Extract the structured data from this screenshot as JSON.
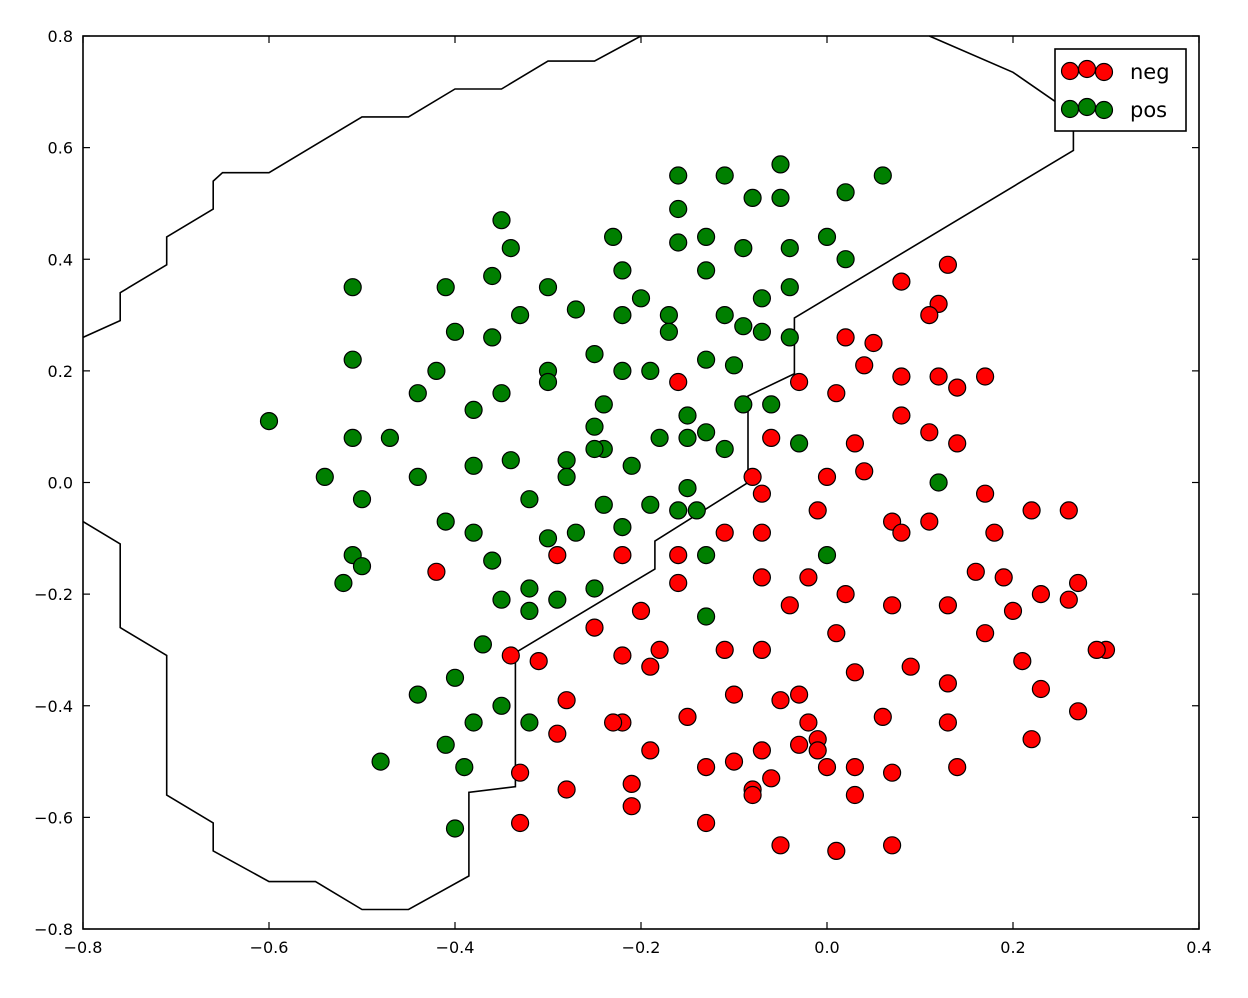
{
  "chart_data": {
    "type": "scatter",
    "title": "",
    "xlabel": "",
    "ylabel": "",
    "xlim": [
      -0.8,
      0.4
    ],
    "ylim": [
      -0.8,
      0.8
    ],
    "xticks": [
      -0.8,
      -0.6,
      -0.4,
      -0.2,
      0.0,
      0.2,
      0.4
    ],
    "yticks": [
      -0.8,
      -0.6,
      -0.4,
      -0.2,
      0.0,
      0.2,
      0.4,
      0.6,
      0.8
    ],
    "xtick_labels": [
      "−0.8",
      "−0.6",
      "−0.4",
      "−0.2",
      "0.0",
      "0.2",
      "0.4"
    ],
    "ytick_labels": [
      "−0.8",
      "−0.6",
      "−0.4",
      "−0.2",
      "0.0",
      "0.2",
      "0.4",
      "0.6",
      "0.8"
    ],
    "grid": false,
    "legend_position": "top-right",
    "colors": {
      "neg": "#ff0000",
      "pos": "#007f00",
      "boundary": "#000000"
    },
    "series": [
      {
        "name": "neg",
        "points": [
          [
            -0.16,
            0.18
          ],
          [
            -0.29,
            -0.13
          ],
          [
            -0.22,
            -0.13
          ],
          [
            -0.42,
            -0.16
          ],
          [
            -0.11,
            -0.09
          ],
          [
            -0.07,
            -0.09
          ],
          [
            -0.06,
            0.08
          ],
          [
            -0.08,
            0.01
          ],
          [
            -0.07,
            -0.02
          ],
          [
            -0.16,
            -0.13
          ],
          [
            -0.16,
            -0.18
          ],
          [
            -0.04,
            -0.22
          ],
          [
            -0.07,
            -0.17
          ],
          [
            -0.02,
            -0.17
          ],
          [
            0.02,
            0.26
          ],
          [
            0.05,
            0.25
          ],
          [
            0.08,
            0.36
          ],
          [
            0.13,
            0.39
          ],
          [
            0.12,
            0.32
          ],
          [
            0.11,
            0.3
          ],
          [
            -0.03,
            0.18
          ],
          [
            0.01,
            0.16
          ],
          [
            0.04,
            0.21
          ],
          [
            0.08,
            0.19
          ],
          [
            0.12,
            0.19
          ],
          [
            0.14,
            0.17
          ],
          [
            0.17,
            0.19
          ],
          [
            0.08,
            0.12
          ],
          [
            0.11,
            0.09
          ],
          [
            0.03,
            0.07
          ],
          [
            0.14,
            0.07
          ],
          [
            0.04,
            0.02
          ],
          [
            0.0,
            0.01
          ],
          [
            -0.01,
            -0.05
          ],
          [
            0.07,
            -0.07
          ],
          [
            0.08,
            -0.09
          ],
          [
            0.11,
            -0.07
          ],
          [
            0.17,
            -0.02
          ],
          [
            0.18,
            -0.09
          ],
          [
            0.22,
            -0.05
          ],
          [
            0.26,
            -0.05
          ],
          [
            0.02,
            -0.2
          ],
          [
            0.07,
            -0.22
          ],
          [
            0.13,
            -0.22
          ],
          [
            0.16,
            -0.16
          ],
          [
            0.19,
            -0.17
          ],
          [
            0.2,
            -0.23
          ],
          [
            0.23,
            -0.2
          ],
          [
            0.26,
            -0.21
          ],
          [
            0.27,
            -0.18
          ],
          [
            0.01,
            -0.27
          ],
          [
            0.17,
            -0.27
          ],
          [
            0.09,
            -0.33
          ],
          [
            0.21,
            -0.32
          ],
          [
            0.03,
            -0.34
          ],
          [
            0.13,
            -0.36
          ],
          [
            0.23,
            -0.37
          ],
          [
            0.3,
            -0.3
          ],
          [
            0.29,
            -0.3
          ],
          [
            -0.25,
            -0.26
          ],
          [
            -0.34,
            -0.31
          ],
          [
            -0.31,
            -0.32
          ],
          [
            -0.22,
            -0.31
          ],
          [
            -0.2,
            -0.23
          ],
          [
            -0.18,
            -0.3
          ],
          [
            -0.19,
            -0.33
          ],
          [
            -0.11,
            -0.3
          ],
          [
            -0.07,
            -0.3
          ],
          [
            -0.28,
            -0.39
          ],
          [
            -0.29,
            -0.45
          ],
          [
            -0.22,
            -0.43
          ],
          [
            -0.23,
            -0.43
          ],
          [
            -0.15,
            -0.42
          ],
          [
            -0.1,
            -0.38
          ],
          [
            -0.05,
            -0.39
          ],
          [
            -0.03,
            -0.38
          ],
          [
            -0.02,
            -0.43
          ],
          [
            -0.03,
            -0.47
          ],
          [
            -0.01,
            -0.46
          ],
          [
            -0.01,
            -0.48
          ],
          [
            0.0,
            -0.51
          ],
          [
            0.03,
            -0.51
          ],
          [
            0.06,
            -0.42
          ],
          [
            0.07,
            -0.52
          ],
          [
            0.13,
            -0.43
          ],
          [
            0.14,
            -0.51
          ],
          [
            0.22,
            -0.46
          ],
          [
            0.27,
            -0.41
          ],
          [
            -0.19,
            -0.48
          ],
          [
            -0.21,
            -0.54
          ],
          [
            -0.13,
            -0.51
          ],
          [
            -0.1,
            -0.5
          ],
          [
            -0.07,
            -0.48
          ],
          [
            -0.06,
            -0.53
          ],
          [
            -0.08,
            -0.55
          ],
          [
            -0.08,
            -0.56
          ],
          [
            0.03,
            -0.56
          ],
          [
            -0.33,
            -0.52
          ],
          [
            -0.28,
            -0.55
          ],
          [
            -0.21,
            -0.58
          ],
          [
            -0.33,
            -0.61
          ],
          [
            -0.13,
            -0.61
          ],
          [
            -0.05,
            -0.65
          ],
          [
            0.01,
            -0.66
          ],
          [
            0.07,
            -0.65
          ]
        ]
      },
      {
        "name": "pos",
        "points": [
          [
            -0.16,
            0.55
          ],
          [
            -0.11,
            0.55
          ],
          [
            -0.05,
            0.57
          ],
          [
            0.06,
            0.55
          ],
          [
            -0.16,
            0.49
          ],
          [
            -0.08,
            0.51
          ],
          [
            -0.05,
            0.51
          ],
          [
            0.02,
            0.52
          ],
          [
            -0.35,
            0.47
          ],
          [
            -0.34,
            0.42
          ],
          [
            -0.23,
            0.44
          ],
          [
            -0.16,
            0.43
          ],
          [
            -0.13,
            0.44
          ],
          [
            -0.09,
            0.42
          ],
          [
            -0.04,
            0.42
          ],
          [
            0.0,
            0.44
          ],
          [
            0.02,
            0.4
          ],
          [
            -0.22,
            0.38
          ],
          [
            -0.13,
            0.38
          ],
          [
            -0.36,
            0.37
          ],
          [
            -0.51,
            0.35
          ],
          [
            -0.41,
            0.35
          ],
          [
            -0.3,
            0.35
          ],
          [
            -0.07,
            0.33
          ],
          [
            -0.04,
            0.35
          ],
          [
            -0.2,
            0.33
          ],
          [
            -0.27,
            0.31
          ],
          [
            -0.33,
            0.3
          ],
          [
            -0.22,
            0.3
          ],
          [
            -0.17,
            0.3
          ],
          [
            -0.11,
            0.3
          ],
          [
            -0.4,
            0.27
          ],
          [
            -0.36,
            0.26
          ],
          [
            -0.17,
            0.27
          ],
          [
            -0.09,
            0.28
          ],
          [
            -0.07,
            0.27
          ],
          [
            -0.04,
            0.26
          ],
          [
            -0.51,
            0.22
          ],
          [
            -0.42,
            0.2
          ],
          [
            -0.25,
            0.23
          ],
          [
            -0.22,
            0.2
          ],
          [
            -0.19,
            0.2
          ],
          [
            -0.13,
            0.22
          ],
          [
            -0.1,
            0.21
          ],
          [
            -0.3,
            0.2
          ],
          [
            -0.3,
            0.18
          ],
          [
            -0.44,
            0.16
          ],
          [
            -0.35,
            0.16
          ],
          [
            -0.24,
            0.14
          ],
          [
            -0.38,
            0.13
          ],
          [
            -0.15,
            0.12
          ],
          [
            -0.09,
            0.14
          ],
          [
            -0.06,
            0.14
          ],
          [
            -0.6,
            0.11
          ],
          [
            -0.51,
            0.08
          ],
          [
            -0.47,
            0.08
          ],
          [
            -0.25,
            0.1
          ],
          [
            -0.18,
            0.08
          ],
          [
            -0.15,
            0.08
          ],
          [
            -0.13,
            0.09
          ],
          [
            -0.24,
            0.06
          ],
          [
            -0.25,
            0.06
          ],
          [
            -0.11,
            0.06
          ],
          [
            -0.03,
            0.07
          ],
          [
            -0.54,
            0.01
          ],
          [
            -0.44,
            0.01
          ],
          [
            -0.38,
            0.03
          ],
          [
            -0.34,
            0.04
          ],
          [
            -0.28,
            0.04
          ],
          [
            -0.21,
            0.03
          ],
          [
            -0.28,
            0.01
          ],
          [
            -0.15,
            -0.01
          ],
          [
            -0.5,
            -0.03
          ],
          [
            -0.32,
            -0.03
          ],
          [
            -0.24,
            -0.04
          ],
          [
            -0.19,
            -0.04
          ],
          [
            -0.16,
            -0.05
          ],
          [
            -0.14,
            -0.05
          ],
          [
            0.12,
            0.0
          ],
          [
            -0.41,
            -0.07
          ],
          [
            -0.38,
            -0.09
          ],
          [
            -0.3,
            -0.1
          ],
          [
            -0.27,
            -0.09
          ],
          [
            -0.22,
            -0.08
          ],
          [
            -0.51,
            -0.13
          ],
          [
            -0.5,
            -0.15
          ],
          [
            -0.52,
            -0.18
          ],
          [
            -0.36,
            -0.14
          ],
          [
            -0.13,
            -0.13
          ],
          [
            0.0,
            -0.13
          ],
          [
            -0.32,
            -0.19
          ],
          [
            -0.25,
            -0.19
          ],
          [
            -0.35,
            -0.21
          ],
          [
            -0.32,
            -0.23
          ],
          [
            -0.29,
            -0.21
          ],
          [
            -0.13,
            -0.24
          ],
          [
            -0.37,
            -0.29
          ],
          [
            -0.44,
            -0.38
          ],
          [
            -0.4,
            -0.35
          ],
          [
            -0.35,
            -0.4
          ],
          [
            -0.38,
            -0.43
          ],
          [
            -0.32,
            -0.43
          ],
          [
            -0.41,
            -0.47
          ],
          [
            -0.48,
            -0.5
          ],
          [
            -0.39,
            -0.51
          ],
          [
            -0.4,
            -0.62
          ]
        ]
      }
    ],
    "decision_boundary": [
      [
        [
          -0.8,
          0.26
        ],
        [
          -0.76,
          0.29
        ],
        [
          -0.76,
          0.34
        ],
        [
          -0.71,
          0.39
        ],
        [
          -0.71,
          0.44
        ],
        [
          -0.66,
          0.49
        ],
        [
          -0.66,
          0.54
        ],
        [
          -0.65,
          0.555
        ],
        [
          -0.6,
          0.555
        ],
        [
          -0.5,
          0.655
        ],
        [
          -0.45,
          0.655
        ],
        [
          -0.4,
          0.705
        ],
        [
          -0.35,
          0.705
        ],
        [
          -0.3,
          0.755
        ],
        [
          -0.25,
          0.755
        ],
        [
          -0.2,
          0.8
        ]
      ],
      [
        [
          0.11,
          0.8
        ],
        [
          0.2,
          0.735
        ],
        [
          0.265,
          0.66
        ],
        [
          0.265,
          0.595
        ],
        [
          -0.035,
          0.295
        ],
        [
          -0.035,
          0.195
        ],
        [
          -0.085,
          0.155
        ],
        [
          -0.085,
          0.0
        ],
        [
          -0.185,
          -0.105
        ],
        [
          -0.185,
          -0.155
        ],
        [
          -0.335,
          -0.305
        ],
        [
          -0.335,
          -0.545
        ],
        [
          -0.385,
          -0.555
        ],
        [
          -0.385,
          -0.705
        ],
        [
          -0.45,
          -0.765
        ],
        [
          -0.5,
          -0.765
        ],
        [
          -0.55,
          -0.715
        ],
        [
          -0.6,
          -0.715
        ],
        [
          -0.66,
          -0.66
        ],
        [
          -0.66,
          -0.61
        ],
        [
          -0.71,
          -0.56
        ],
        [
          -0.71,
          -0.31
        ],
        [
          -0.76,
          -0.26
        ],
        [
          -0.76,
          -0.11
        ],
        [
          -0.8,
          -0.07
        ]
      ]
    ]
  }
}
